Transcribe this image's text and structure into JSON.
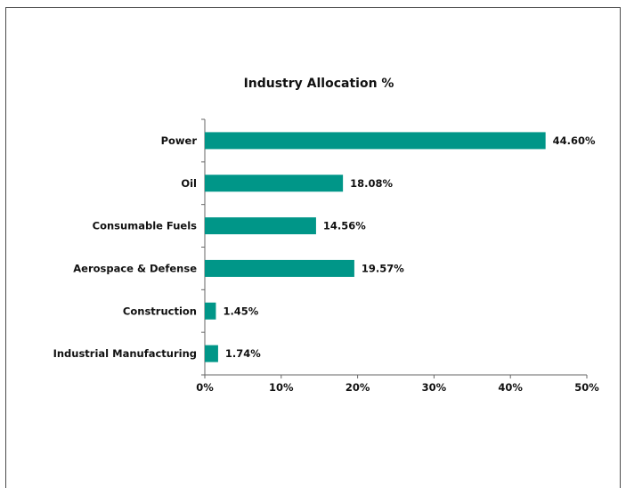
{
  "chart_data": {
    "type": "bar",
    "orientation": "horizontal",
    "title": "Industry Allocation %",
    "categories": [
      "Power",
      "Oil",
      "Consumable Fuels",
      "Aerospace & Defense",
      "Construction",
      "Industrial Manufacturing"
    ],
    "values": [
      44.6,
      18.08,
      14.56,
      19.57,
      1.45,
      1.74
    ],
    "value_labels": [
      "44.60%",
      "18.08%",
      "14.56%",
      "19.57%",
      "1.45%",
      "1.74%"
    ],
    "xlim": [
      0,
      50
    ],
    "x_ticks": [
      0,
      10,
      20,
      30,
      40,
      50
    ],
    "x_tick_labels": [
      "0%",
      "10%",
      "20%",
      "30%",
      "40%",
      "50%"
    ],
    "bar_color": "#009688",
    "grid": false,
    "legend": "none"
  }
}
